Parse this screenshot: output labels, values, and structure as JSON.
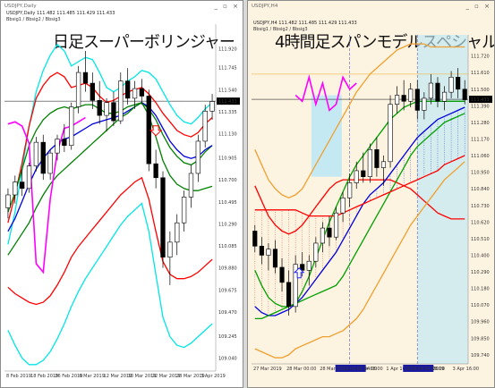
{
  "left": {
    "window_title": "USDJPY,Daily",
    "symbol_line": "USDJPY,Daily  111.482 111.485 111.429 111.433",
    "indicator_line": "Bbsig1 / Bbsig2 / Bbsig3",
    "heading": "日足スーパーボリンジャー",
    "price_tag": "111.433",
    "colors": {
      "sigma3": "#00e6e6",
      "sigma2": "#ff0000",
      "sigma1": "#008000",
      "middle": "#0000dd",
      "lagging": "#ff00ff",
      "arrow": "#ff0000"
    }
  },
  "right": {
    "window_title": "USDJPY,H4",
    "symbol_line": "USDJPY,H4  111.482 111.485 111.429 111.433",
    "indicator_line": "Bbsig1 / Bbsig2 / Bbsig3",
    "heading": "4時間足スパンモデルスペシャル",
    "price_tag": "111.433",
    "session_labels": [
      "2019.04.01 04:00",
      "2019.04.03 08:00"
    ],
    "colors": {
      "sigma3": "#f0a030",
      "sigma2": "#ff0000",
      "sigma1": "#00a000",
      "middle": "#0000dd",
      "lagging": "#ff00ff",
      "session_bg": "#bfe8f5",
      "cloud": "#e9c7a5",
      "arrow": "#2020ff"
    }
  },
  "chart_data": [
    {
      "type": "line",
      "timeframe": "Daily",
      "x_labels": [
        "8 Feb 2019",
        "18 Feb 2019",
        "26 Feb 2019",
        "6 Mar 2019",
        "12 Mar 2019",
        "18 Mar 2019",
        "22 Mar 2019",
        "28 Mar 2019",
        "3 Apr 2019"
      ],
      "y_ticks": [
        111.92,
        111.745,
        111.54,
        111.335,
        111.13,
        110.905,
        110.7,
        110.495,
        110.29,
        110.085,
        109.88,
        109.675,
        109.47,
        109.245,
        109.04
      ],
      "ylim": [
        108.92,
        112.15
      ],
      "current_price": 111.433,
      "candles": [
        {
          "o": 110.44,
          "h": 110.62,
          "l": 110.34,
          "c": 110.56
        },
        {
          "o": 110.56,
          "h": 110.74,
          "l": 110.48,
          "c": 110.68
        },
        {
          "o": 110.68,
          "h": 110.8,
          "l": 110.55,
          "c": 110.62
        },
        {
          "o": 110.62,
          "h": 110.86,
          "l": 110.58,
          "c": 110.83
        },
        {
          "o": 110.83,
          "h": 111.1,
          "l": 110.78,
          "c": 111.05
        },
        {
          "o": 111.05,
          "h": 111.12,
          "l": 110.7,
          "c": 110.76
        },
        {
          "o": 110.76,
          "h": 110.98,
          "l": 110.7,
          "c": 110.95
        },
        {
          "o": 110.95,
          "h": 111.12,
          "l": 110.88,
          "c": 111.08
        },
        {
          "o": 111.08,
          "h": 111.22,
          "l": 110.96,
          "c": 111.02
        },
        {
          "o": 111.02,
          "h": 111.42,
          "l": 110.98,
          "c": 111.38
        },
        {
          "o": 111.38,
          "h": 111.76,
          "l": 111.32,
          "c": 111.7
        },
        {
          "o": 111.7,
          "h": 111.9,
          "l": 111.52,
          "c": 111.6
        },
        {
          "o": 111.6,
          "h": 111.7,
          "l": 111.36,
          "c": 111.44
        },
        {
          "o": 111.44,
          "h": 111.62,
          "l": 111.22,
          "c": 111.3
        },
        {
          "o": 111.3,
          "h": 111.46,
          "l": 111.15,
          "c": 111.42
        },
        {
          "o": 111.42,
          "h": 111.52,
          "l": 111.2,
          "c": 111.25
        },
        {
          "o": 111.25,
          "h": 111.7,
          "l": 111.22,
          "c": 111.62
        },
        {
          "o": 111.62,
          "h": 111.74,
          "l": 111.4,
          "c": 111.46
        },
        {
          "o": 111.46,
          "h": 111.62,
          "l": 111.36,
          "c": 111.55
        },
        {
          "o": 111.55,
          "h": 111.64,
          "l": 111.4,
          "c": 111.48
        },
        {
          "o": 111.48,
          "h": 111.54,
          "l": 110.78,
          "c": 110.85
        },
        {
          "o": 110.85,
          "h": 110.98,
          "l": 110.62,
          "c": 110.72
        },
        {
          "o": 110.72,
          "h": 110.78,
          "l": 109.88,
          "c": 109.98
        },
        {
          "o": 109.98,
          "h": 110.22,
          "l": 109.72,
          "c": 110.12
        },
        {
          "o": 110.12,
          "h": 110.38,
          "l": 110.0,
          "c": 110.3
        },
        {
          "o": 110.3,
          "h": 110.6,
          "l": 110.22,
          "c": 110.54
        },
        {
          "o": 110.54,
          "h": 110.84,
          "l": 110.44,
          "c": 110.76
        },
        {
          "o": 110.76,
          "h": 111.12,
          "l": 110.68,
          "c": 111.06
        },
        {
          "o": 111.06,
          "h": 111.4,
          "l": 111.0,
          "c": 111.34
        },
        {
          "o": 111.34,
          "h": 111.5,
          "l": 111.26,
          "c": 111.43
        }
      ],
      "series": [
        {
          "color": "#00e6e6",
          "values": [
            110.1,
            110.4,
            110.8,
            111.2,
            111.52,
            111.72,
            111.86,
            111.96,
            111.9,
            111.76,
            111.8,
            111.84,
            111.82,
            111.7,
            111.56,
            111.52,
            111.56,
            111.62,
            111.66,
            111.72,
            111.7,
            111.64,
            111.52,
            111.4,
            111.3,
            111.24,
            111.22,
            111.28,
            111.36,
            111.42
          ]
        },
        {
          "color": "#ff0000",
          "values": [
            110.3,
            110.56,
            110.86,
            111.2,
            111.46,
            111.58,
            111.66,
            111.7,
            111.66,
            111.56,
            111.58,
            111.6,
            111.56,
            111.48,
            111.42,
            111.44,
            111.48,
            111.52,
            111.54,
            111.56,
            111.5,
            111.42,
            111.32,
            111.24,
            111.16,
            111.12,
            111.1,
            111.14,
            111.22,
            111.28
          ]
        },
        {
          "color": "#008000",
          "values": [
            110.4,
            110.58,
            110.8,
            111.02,
            111.16,
            111.26,
            111.32,
            111.36,
            111.38,
            111.36,
            111.38,
            111.4,
            111.4,
            111.36,
            111.32,
            111.32,
            111.34,
            111.38,
            111.4,
            111.42,
            111.36,
            111.26,
            111.12,
            111.0,
            110.92,
            110.86,
            110.84,
            110.88,
            110.96,
            111.02
          ]
        },
        {
          "color": "#0000dd",
          "values": [
            110.22,
            110.34,
            110.5,
            110.66,
            110.8,
            110.9,
            110.98,
            111.04,
            111.08,
            111.1,
            111.14,
            111.18,
            111.22,
            111.24,
            111.26,
            111.28,
            111.3,
            111.34,
            111.38,
            111.42,
            111.38,
            111.3,
            111.18,
            111.06,
            110.98,
            110.92,
            110.9,
            110.92,
            110.98,
            111.02
          ]
        },
        {
          "color": "#008000",
          "values": [
            110.0,
            110.1,
            110.2,
            110.3,
            110.44,
            110.56,
            110.66,
            110.74,
            110.8,
            110.86,
            110.92,
            110.98,
            111.04,
            111.1,
            111.16,
            111.22,
            111.28,
            111.32,
            111.38,
            111.42,
            111.3,
            111.1,
            110.88,
            110.74,
            110.66,
            110.62,
            110.6,
            110.6,
            110.62,
            110.64
          ]
        },
        {
          "color": "#ff0000",
          "values": [
            109.7,
            109.64,
            109.6,
            109.56,
            109.54,
            109.56,
            109.62,
            109.72,
            109.84,
            109.98,
            110.08,
            110.16,
            110.24,
            110.32,
            110.4,
            110.48,
            110.56,
            110.62,
            110.68,
            110.72,
            110.52,
            110.22,
            109.94,
            109.82,
            109.78,
            109.78,
            109.8,
            109.84,
            109.9,
            109.96
          ]
        },
        {
          "color": "#00e6e6",
          "values": [
            109.3,
            109.16,
            109.04,
            108.98,
            108.98,
            109.02,
            109.1,
            109.22,
            109.36,
            109.52,
            109.66,
            109.78,
            109.88,
            109.98,
            110.08,
            110.18,
            110.28,
            110.36,
            110.42,
            110.48,
            110.22,
            109.82,
            109.42,
            109.24,
            109.16,
            109.14,
            109.18,
            109.24,
            109.3,
            109.36
          ]
        },
        {
          "color": "#ff00ff",
          "values": [
            111.22,
            111.24,
            111.2,
            111.04,
            109.92,
            109.84,
            110.52,
            110.96,
            111.18,
            111.2,
            111.24,
            111.28
          ]
        }
      ]
    },
    {
      "type": "line",
      "timeframe": "H4",
      "x_labels": [
        "27 Mar 2019",
        "28 Mar 00:00",
        "28 Mar 16:00",
        "29 Mar 08:00",
        "1 Apr 16:00",
        "3 Apr 2019",
        "3 Apr 16:00"
      ],
      "y_ticks": [
        111.72,
        111.61,
        111.5,
        111.39,
        111.28,
        111.17,
        111.06,
        110.95,
        110.84,
        110.73,
        110.62,
        110.51,
        110.4,
        110.29,
        110.18,
        110.07,
        109.96,
        109.85,
        109.74
      ],
      "ylim": [
        109.68,
        111.86
      ],
      "current_price": 111.433,
      "candles": [
        {
          "o": 110.56,
          "h": 110.6,
          "l": 110.42,
          "c": 110.46
        },
        {
          "o": 110.46,
          "h": 110.52,
          "l": 110.34,
          "c": 110.4
        },
        {
          "o": 110.4,
          "h": 110.48,
          "l": 110.3,
          "c": 110.44
        },
        {
          "o": 110.44,
          "h": 110.5,
          "l": 110.28,
          "c": 110.32
        },
        {
          "o": 110.32,
          "h": 110.38,
          "l": 110.16,
          "c": 110.22
        },
        {
          "o": 110.22,
          "h": 110.3,
          "l": 110.0,
          "c": 110.06
        },
        {
          "o": 110.06,
          "h": 110.4,
          "l": 110.02,
          "c": 110.34
        },
        {
          "o": 110.34,
          "h": 110.42,
          "l": 110.26,
          "c": 110.3
        },
        {
          "o": 110.3,
          "h": 110.4,
          "l": 110.2,
          "c": 110.36
        },
        {
          "o": 110.36,
          "h": 110.52,
          "l": 110.32,
          "c": 110.48
        },
        {
          "o": 110.48,
          "h": 110.62,
          "l": 110.42,
          "c": 110.58
        },
        {
          "o": 110.58,
          "h": 110.66,
          "l": 110.46,
          "c": 110.52
        },
        {
          "o": 110.52,
          "h": 110.72,
          "l": 110.5,
          "c": 110.68
        },
        {
          "o": 110.68,
          "h": 110.82,
          "l": 110.62,
          "c": 110.78
        },
        {
          "o": 110.78,
          "h": 110.94,
          "l": 110.72,
          "c": 110.88
        },
        {
          "o": 110.88,
          "h": 111.02,
          "l": 110.84,
          "c": 110.96
        },
        {
          "o": 110.96,
          "h": 111.08,
          "l": 110.88,
          "c": 110.92
        },
        {
          "o": 110.92,
          "h": 111.14,
          "l": 110.88,
          "c": 111.1
        },
        {
          "o": 111.1,
          "h": 111.18,
          "l": 110.92,
          "c": 110.98
        },
        {
          "o": 110.98,
          "h": 111.06,
          "l": 110.86,
          "c": 111.02
        },
        {
          "o": 111.02,
          "h": 111.46,
          "l": 110.98,
          "c": 111.4
        },
        {
          "o": 111.4,
          "h": 111.52,
          "l": 111.34,
          "c": 111.46
        },
        {
          "o": 111.46,
          "h": 111.56,
          "l": 111.36,
          "c": 111.42
        },
        {
          "o": 111.42,
          "h": 111.54,
          "l": 111.38,
          "c": 111.5
        },
        {
          "o": 111.5,
          "h": 111.56,
          "l": 111.3,
          "c": 111.36
        },
        {
          "o": 111.36,
          "h": 111.48,
          "l": 111.3,
          "c": 111.44
        },
        {
          "o": 111.44,
          "h": 111.6,
          "l": 111.4,
          "c": 111.54
        },
        {
          "o": 111.54,
          "h": 111.58,
          "l": 111.38,
          "c": 111.42
        },
        {
          "o": 111.42,
          "h": 111.52,
          "l": 111.36,
          "c": 111.48
        },
        {
          "o": 111.48,
          "h": 111.62,
          "l": 111.44,
          "c": 111.58
        },
        {
          "o": 111.58,
          "h": 111.64,
          "l": 111.44,
          "c": 111.5
        },
        {
          "o": 111.5,
          "h": 111.56,
          "l": 111.4,
          "c": 111.43
        }
      ],
      "series": [
        {
          "color": "#f0a030",
          "values": [
            111.1,
            111.0,
            110.9,
            110.84,
            110.8,
            110.78,
            110.8,
            110.84,
            110.92,
            111.0,
            111.08,
            111.16,
            111.24,
            111.32,
            111.4,
            111.48,
            111.54,
            111.6,
            111.64,
            111.68,
            111.72,
            111.76,
            111.78,
            111.8,
            111.8,
            111.8,
            111.78,
            111.78,
            111.78,
            111.78,
            111.78,
            111.78
          ]
        },
        {
          "color": "#ff0000",
          "values": [
            110.86,
            110.76,
            110.66,
            110.6,
            110.56,
            110.54,
            110.56,
            110.6,
            110.66,
            110.72,
            110.78,
            110.84,
            110.88,
            110.9,
            110.9,
            110.9,
            110.9,
            110.9,
            110.9,
            110.9,
            110.9,
            110.88,
            110.86,
            110.84,
            110.8,
            110.76,
            110.72,
            110.68,
            110.66,
            110.64,
            110.64,
            110.64
          ]
        },
        {
          "color": "#00a000",
          "values": [
            110.3,
            110.2,
            110.12,
            110.08,
            110.06,
            110.06,
            110.08,
            110.16,
            110.26,
            110.38,
            110.5,
            110.62,
            110.72,
            110.82,
            110.92,
            111.0,
            111.06,
            111.12,
            111.18,
            111.24,
            111.3,
            111.34,
            111.38,
            111.4,
            111.42,
            111.42,
            111.42,
            111.42,
            111.42,
            111.42,
            111.42,
            111.42
          ]
        },
        {
          "color": "#0000dd",
          "values": [
            110.06,
            110.02,
            110.0,
            110.0,
            110.02,
            110.04,
            110.08,
            110.12,
            110.18,
            110.24,
            110.3,
            110.36,
            110.42,
            110.5,
            110.58,
            110.66,
            110.74,
            110.8,
            110.84,
            110.88,
            110.94,
            111.0,
            111.06,
            111.12,
            111.18,
            111.22,
            111.26,
            111.3,
            111.32,
            111.34,
            111.36,
            111.38
          ]
        },
        {
          "color": "#00a000",
          "values": [
            109.98,
            109.98,
            110.0,
            110.02,
            110.04,
            110.06,
            110.08,
            110.1,
            110.12,
            110.14,
            110.16,
            110.18,
            110.2,
            110.26,
            110.34,
            110.42,
            110.5,
            110.58,
            110.66,
            110.74,
            110.82,
            110.9,
            110.98,
            111.06,
            111.12,
            111.16,
            111.2,
            111.24,
            111.28,
            111.3,
            111.32,
            111.34
          ]
        },
        {
          "color": "#ff0000",
          "values": [
            110.7,
            110.7,
            110.7,
            110.7,
            110.7,
            110.7,
            110.7,
            110.68,
            110.66,
            110.66,
            110.66,
            110.66,
            110.66,
            110.68,
            110.7,
            110.72,
            110.74,
            110.76,
            110.78,
            110.8,
            110.82,
            110.84,
            110.86,
            110.88,
            110.9,
            110.92,
            110.94,
            110.96,
            111.0,
            111.02,
            111.04,
            111.06
          ]
        },
        {
          "color": "#f0a030",
          "values": [
            109.78,
            109.76,
            109.74,
            109.72,
            109.72,
            109.74,
            109.78,
            109.8,
            109.82,
            109.84,
            109.86,
            109.86,
            109.88,
            109.9,
            109.94,
            109.98,
            110.04,
            110.12,
            110.2,
            110.28,
            110.36,
            110.44,
            110.52,
            110.6,
            110.66,
            110.72,
            110.78,
            110.84,
            110.9,
            110.94,
            110.98,
            111.02
          ]
        },
        {
          "color": "#ff00ff",
          "values": [
            111.46,
            111.42,
            111.58,
            111.4,
            111.54,
            111.36,
            111.4,
            111.58,
            111.5,
            111.54
          ]
        }
      ]
    }
  ]
}
